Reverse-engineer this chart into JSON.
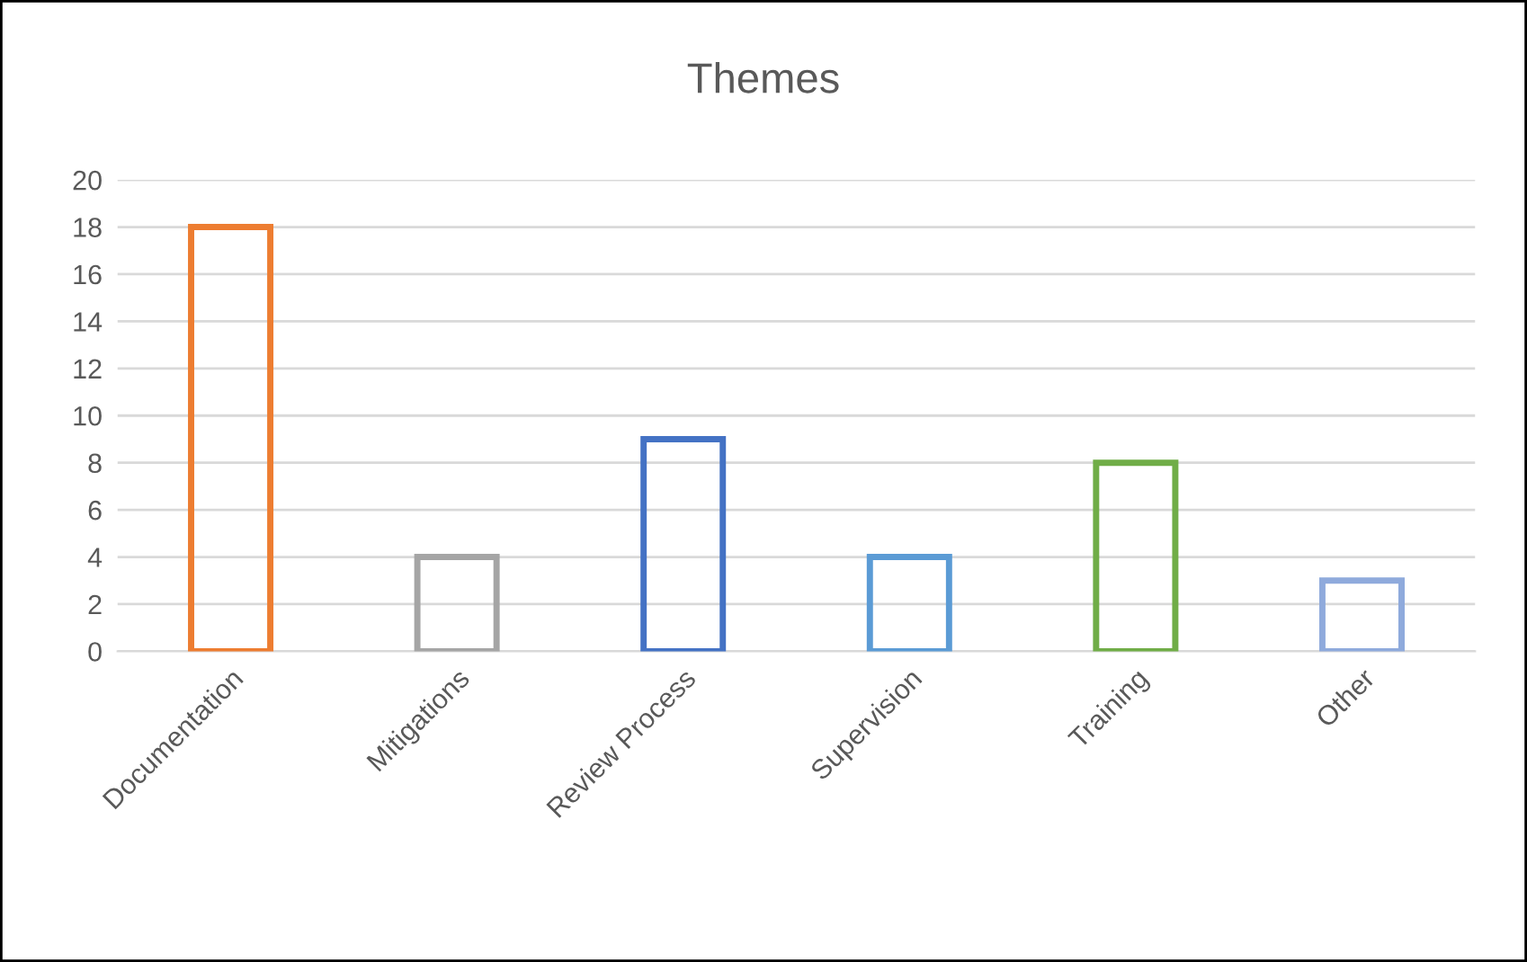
{
  "chart_data": {
    "type": "bar",
    "title": "Themes",
    "categories": [
      "Documentation",
      "Mitigations",
      "Review Process",
      "Supervision",
      "Training",
      "Other"
    ],
    "values": [
      18,
      4,
      9,
      4,
      8,
      3
    ],
    "colors": [
      "#ed7d31",
      "#a5a5a5",
      "#4472c4",
      "#5b9bd5",
      "#70ad47",
      "#8faadc"
    ],
    "ylim": [
      0,
      20
    ],
    "yticks": [
      0,
      2,
      4,
      6,
      8,
      10,
      12,
      14,
      16,
      18,
      20
    ],
    "grid": "y",
    "legend": false
  }
}
